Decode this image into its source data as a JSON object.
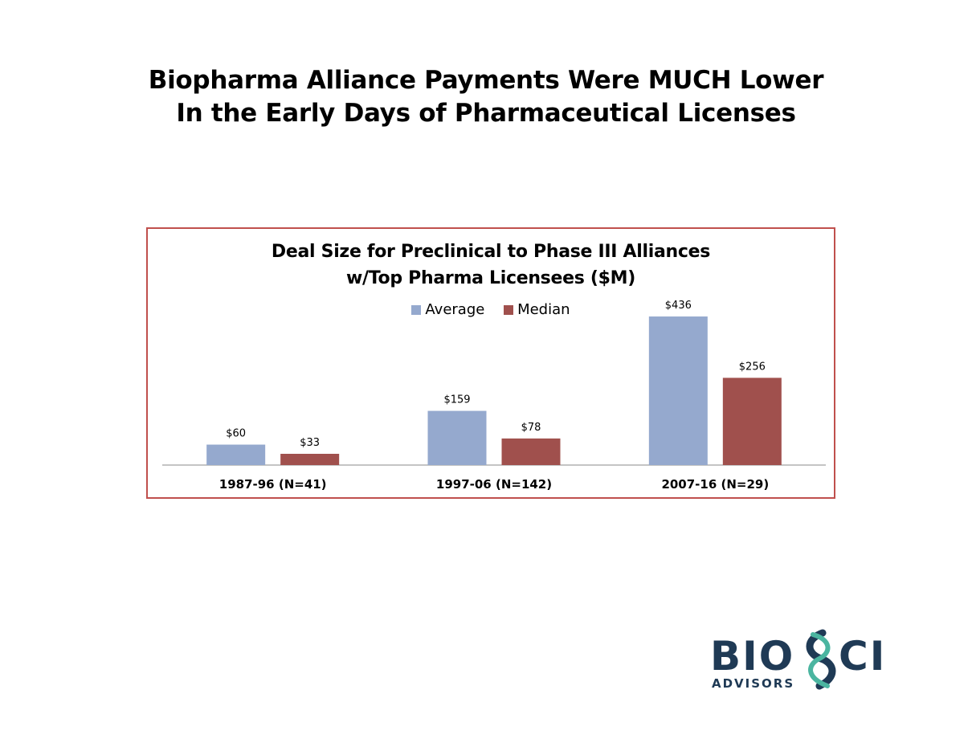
{
  "slide": {
    "title_line1": "Biopharma Alliance Payments Were MUCH Lower",
    "title_line2": "In the Early Days of Pharmaceutical Licenses"
  },
  "chart_data": {
    "type": "bar",
    "title_line1": "Deal Size for Preclinical to Phase III Alliances",
    "title_line2": "w/Top Pharma Licensees ($M)",
    "categories": [
      "1987-96 (N=41)",
      "1997-06 (N=142)",
      "2007-16 (N=29)"
    ],
    "series": [
      {
        "name": "Average",
        "color": "#95a9ce",
        "values": [
          60,
          159,
          436
        ],
        "labels": [
          "$60",
          "$159",
          "$436"
        ]
      },
      {
        "name": "Median",
        "color": "#a0504d",
        "values": [
          33,
          78,
          256
        ],
        "labels": [
          "$33",
          "$78",
          "$256"
        ]
      }
    ],
    "ylim": [
      0,
      500
    ],
    "legend_position": "top",
    "grid": false
  },
  "logo": {
    "brand": "BIOSCI",
    "tagline": "ADVISORS",
    "primary_color": "#1f3a55",
    "accent_color": "#4bb5a0"
  }
}
